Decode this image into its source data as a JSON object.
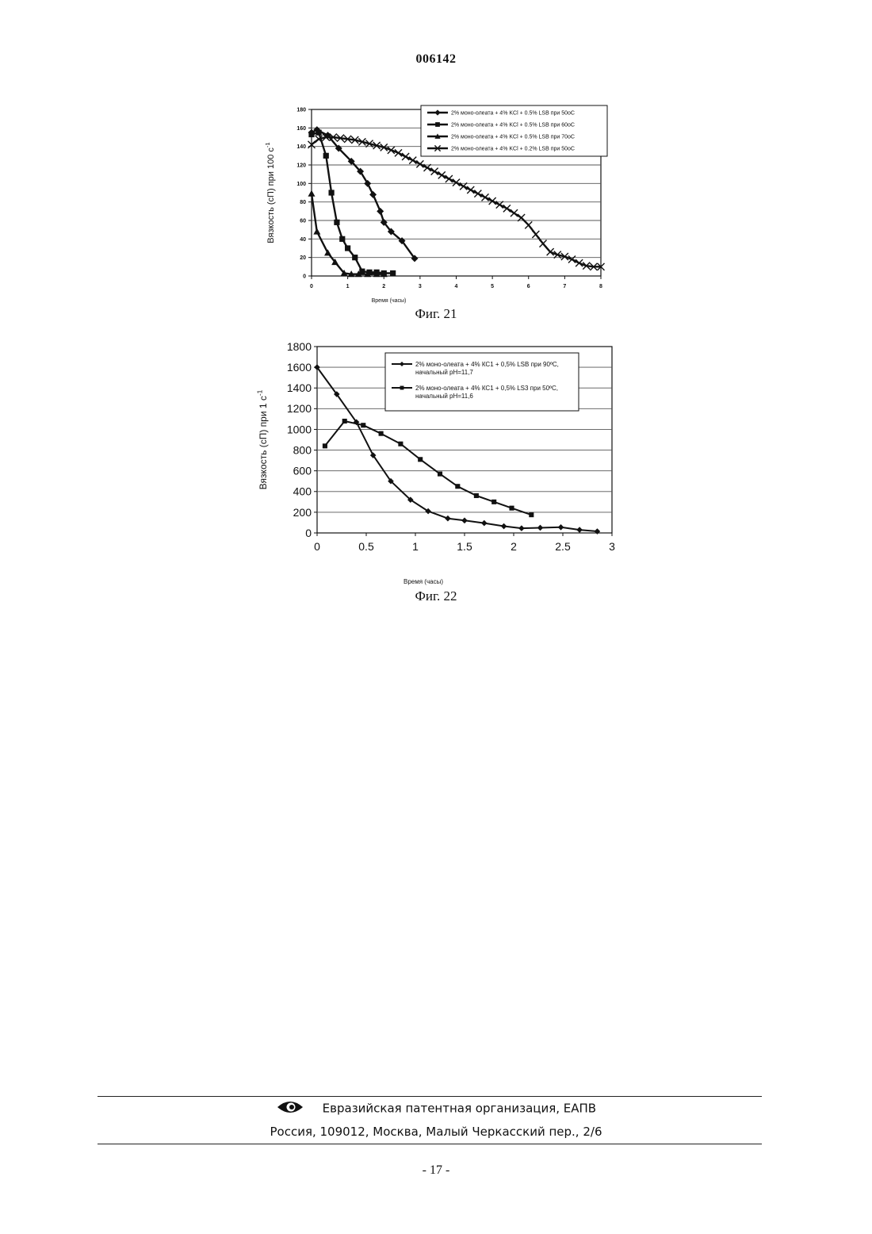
{
  "header": {
    "doc_number": "006142"
  },
  "figures": [
    {
      "caption": "Фиг. 21"
    },
    {
      "caption": "Фиг. 22"
    }
  ],
  "chart_data": [
    {
      "type": "line",
      "title": "",
      "xlabel": "Время (часы)",
      "ylabel": "Вязкость (сП) при 100 с",
      "ylabel_superscript": "-1",
      "xlim": [
        0,
        8
      ],
      "ylim": [
        0,
        180
      ],
      "x_ticks": [
        "0",
        "1",
        "2",
        "3",
        "4",
        "5",
        "6",
        "7",
        "8"
      ],
      "y_ticks": [
        "0",
        "20",
        "40",
        "60",
        "80",
        "100",
        "120",
        "140",
        "160",
        "180"
      ],
      "grid": true,
      "legend_position": "top-right",
      "series": [
        {
          "name": "2% моно-олеата + 4% KCl + 0.5% LSB при 50оС",
          "marker": "diamond",
          "x": [
            0,
            0.15,
            0.45,
            0.75,
            1.1,
            1.35,
            1.55,
            1.7,
            1.9,
            2.0,
            2.2,
            2.5,
            2.85
          ],
          "y": [
            155,
            158,
            152,
            138,
            124,
            113,
            100,
            88,
            70,
            58,
            48,
            38,
            19
          ]
        },
        {
          "name": "2% моно-олеата + 4% KCl + 0.5% LSB при 60оС",
          "marker": "square",
          "x": [
            0,
            0.2,
            0.4,
            0.55,
            0.7,
            0.85,
            1.0,
            1.2,
            1.4,
            1.6,
            1.8,
            2.0,
            2.25
          ],
          "y": [
            153,
            155,
            130,
            90,
            58,
            40,
            30,
            20,
            5,
            4,
            4,
            3,
            3
          ]
        },
        {
          "name": "2% моно-олеата + 4% KCl + 0.5% LSB при 70оС",
          "marker": "triangle",
          "x": [
            0,
            0.15,
            0.45,
            0.65,
            0.9,
            1.1,
            1.3,
            1.55,
            1.8,
            2.0
          ],
          "y": [
            89,
            48,
            25,
            15,
            3,
            2,
            2,
            2,
            2,
            2
          ]
        },
        {
          "name": "2% моно-олеата + 4% KCl + 0.2% LSB при 50оС",
          "marker": "x",
          "x": [
            0,
            0.2,
            0.4,
            0.6,
            0.8,
            1.0,
            1.2,
            1.4,
            1.6,
            1.8,
            2.0,
            2.2,
            2.4,
            2.6,
            2.8,
            3.0,
            3.2,
            3.4,
            3.6,
            3.8,
            4.0,
            4.2,
            4.4,
            4.6,
            4.8,
            5.0,
            5.2,
            5.4,
            5.6,
            5.8,
            6.0,
            6.2,
            6.4,
            6.6,
            6.8,
            7.0,
            7.2,
            7.4,
            7.6,
            7.8,
            8.0
          ],
          "y": [
            142,
            148,
            150,
            150,
            149,
            148,
            147,
            145,
            143,
            141,
            139,
            136,
            133,
            129,
            125,
            121,
            117,
            113,
            109,
            105,
            101,
            97,
            93,
            89,
            85,
            81,
            77,
            73,
            68,
            63,
            55,
            45,
            35,
            26,
            23,
            21,
            18,
            14,
            11,
            10,
            10
          ]
        }
      ]
    },
    {
      "type": "line",
      "title": "",
      "xlabel": "Время (часы)",
      "ylabel": "Вязкость (сП) при 1 с",
      "ylabel_superscript": "-1",
      "xlim": [
        0,
        3
      ],
      "ylim": [
        0,
        1800
      ],
      "x_ticks": [
        "0",
        "0.5",
        "1",
        "1.5",
        "2",
        "2.5",
        "3"
      ],
      "y_ticks": [
        "0",
        "200",
        "400",
        "600",
        "800",
        "1000",
        "1200",
        "1400",
        "1600",
        "1800"
      ],
      "grid": true,
      "legend_position": "top-right",
      "series": [
        {
          "name": "2% моно-олеата + 4% КС1 + 0,5% LSB при 90ºС,",
          "name_line2": "начальный pH=11,7",
          "marker": "diamond",
          "x": [
            0,
            0.2,
            0.4,
            0.57,
            0.75,
            0.95,
            1.13,
            1.33,
            1.5,
            1.7,
            1.9,
            2.08,
            2.27,
            2.48,
            2.67,
            2.85
          ],
          "y": [
            1600,
            1340,
            1070,
            750,
            500,
            320,
            210,
            140,
            120,
            95,
            65,
            45,
            50,
            55,
            30,
            15
          ]
        },
        {
          "name": "2% моно-олеата + 4% КС1 + 0,5% LS3 при 50ºС,",
          "name_line2": "начальный pH=11,6",
          "marker": "square",
          "x": [
            0.08,
            0.28,
            0.47,
            0.65,
            0.85,
            1.05,
            1.25,
            1.43,
            1.62,
            1.8,
            1.98,
            2.18
          ],
          "y": [
            840,
            1080,
            1040,
            960,
            860,
            710,
            570,
            450,
            360,
            300,
            240,
            175
          ]
        }
      ]
    }
  ],
  "footer": {
    "org": "Евразийская патентная организация, ЕАПВ",
    "address": "Россия, 109012, Москва, Малый Черкасский пер., 2/6",
    "page_number": "- 17 -"
  },
  "colors": {
    "ink": "#111111",
    "grid": "#555555",
    "paper": "#ffffff"
  },
  "icons": {
    "logo": "eapo-eye-logo"
  }
}
